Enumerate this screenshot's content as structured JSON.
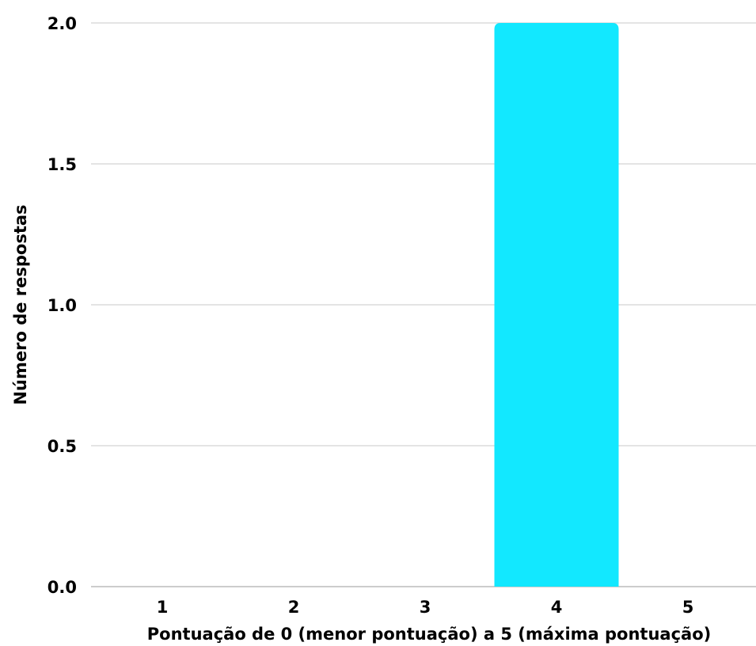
{
  "chart_data": {
    "type": "bar",
    "categories": [
      "1",
      "2",
      "3",
      "4",
      "5"
    ],
    "values": [
      0,
      0,
      0,
      2,
      0
    ],
    "xlabel": "Pontuação de 0 (menor pontuação) a 5 (máxima pontuação)",
    "ylabel": "Número de respostas",
    "ylim": [
      0,
      2
    ],
    "yticks": [
      "0.0",
      "0.5",
      "1.0",
      "1.5",
      "2.0"
    ],
    "grid": true,
    "bar_color": "#12e8ff"
  }
}
